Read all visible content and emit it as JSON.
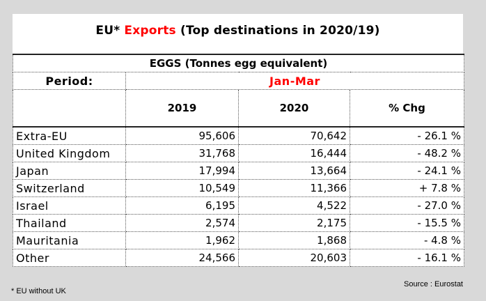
{
  "title": {
    "prefix": "EU*",
    "highlight": "Exports",
    "suffix": "(Top destinations in 2020/19)"
  },
  "product": "EGGS (Tonnes egg equivalent)",
  "period_label": "Period:",
  "period_value": "Jan-Mar",
  "columns": [
    "",
    "2019",
    "2020",
    "% Chg"
  ],
  "rows": [
    {
      "name": "Extra-EU",
      "y2019": "95,606",
      "y2020": "70,642",
      "chg": "- 26.1 %"
    },
    {
      "name": "United Kingdom",
      "y2019": "31,768",
      "y2020": "16,444",
      "chg": "- 48.2 %"
    },
    {
      "name": "Japan",
      "y2019": "17,994",
      "y2020": "13,664",
      "chg": "- 24.1 %"
    },
    {
      "name": "Switzerland",
      "y2019": "10,549",
      "y2020": "11,366",
      "chg": "+ 7.8 %"
    },
    {
      "name": "Israel",
      "y2019": "6,195",
      "y2020": "4,522",
      "chg": "- 27.0 %"
    },
    {
      "name": "Thailand",
      "y2019": "2,574",
      "y2020": "2,175",
      "chg": "- 15.5 %"
    },
    {
      "name": "Mauritania",
      "y2019": "1,962",
      "y2020": "1,868",
      "chg": "- 4.8 %"
    },
    {
      "name": "Other",
      "y2019": "24,566",
      "y2020": "20,603",
      "chg": "- 16.1 %"
    }
  ],
  "source": "Source : Eurostat",
  "footnote": "* EU without UK",
  "colors": {
    "accent": "#ff0000",
    "background": "#d9d9d9"
  }
}
